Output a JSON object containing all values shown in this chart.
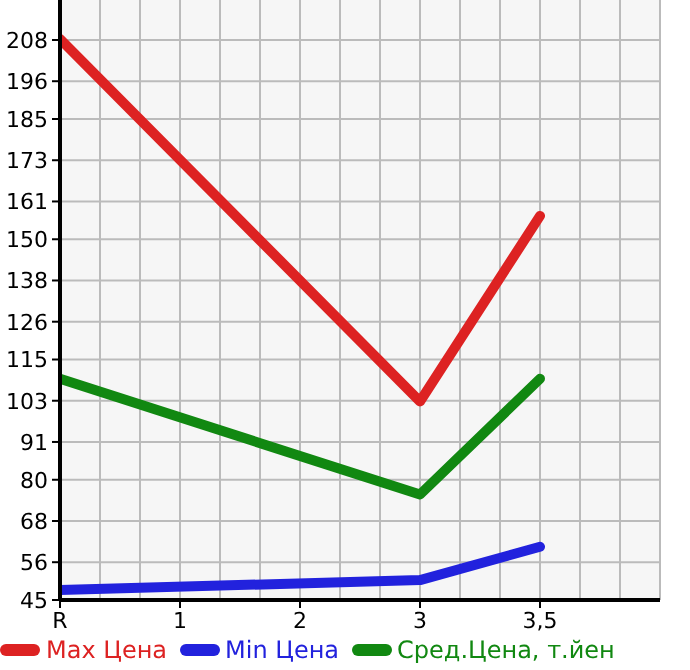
{
  "chart_data": {
    "type": "line",
    "categories": [
      "R",
      "1",
      "2",
      "3",
      "3,5"
    ],
    "series": [
      {
        "name": "Max Цена",
        "color": "#dd2222",
        "values": [
          208.3,
          null,
          null,
          102.8,
          156.8
        ]
      },
      {
        "name": "Min Цена",
        "color": "#2222dd",
        "values": [
          47.9,
          null,
          null,
          50.8,
          60.5
        ]
      },
      {
        "name": "Сред.Цена, т.йен",
        "color": "#118811",
        "values": [
          109.4,
          null,
          null,
          75.7,
          109.4
        ]
      }
    ],
    "ylim": [
      45,
      219.64
    ],
    "yticks": [
      45,
      56,
      68,
      80,
      91,
      103,
      115,
      126,
      138,
      150,
      161,
      173,
      185,
      196,
      208
    ],
    "grid": true,
    "legend": "bottom",
    "marker": "none",
    "line_style": "solid"
  }
}
